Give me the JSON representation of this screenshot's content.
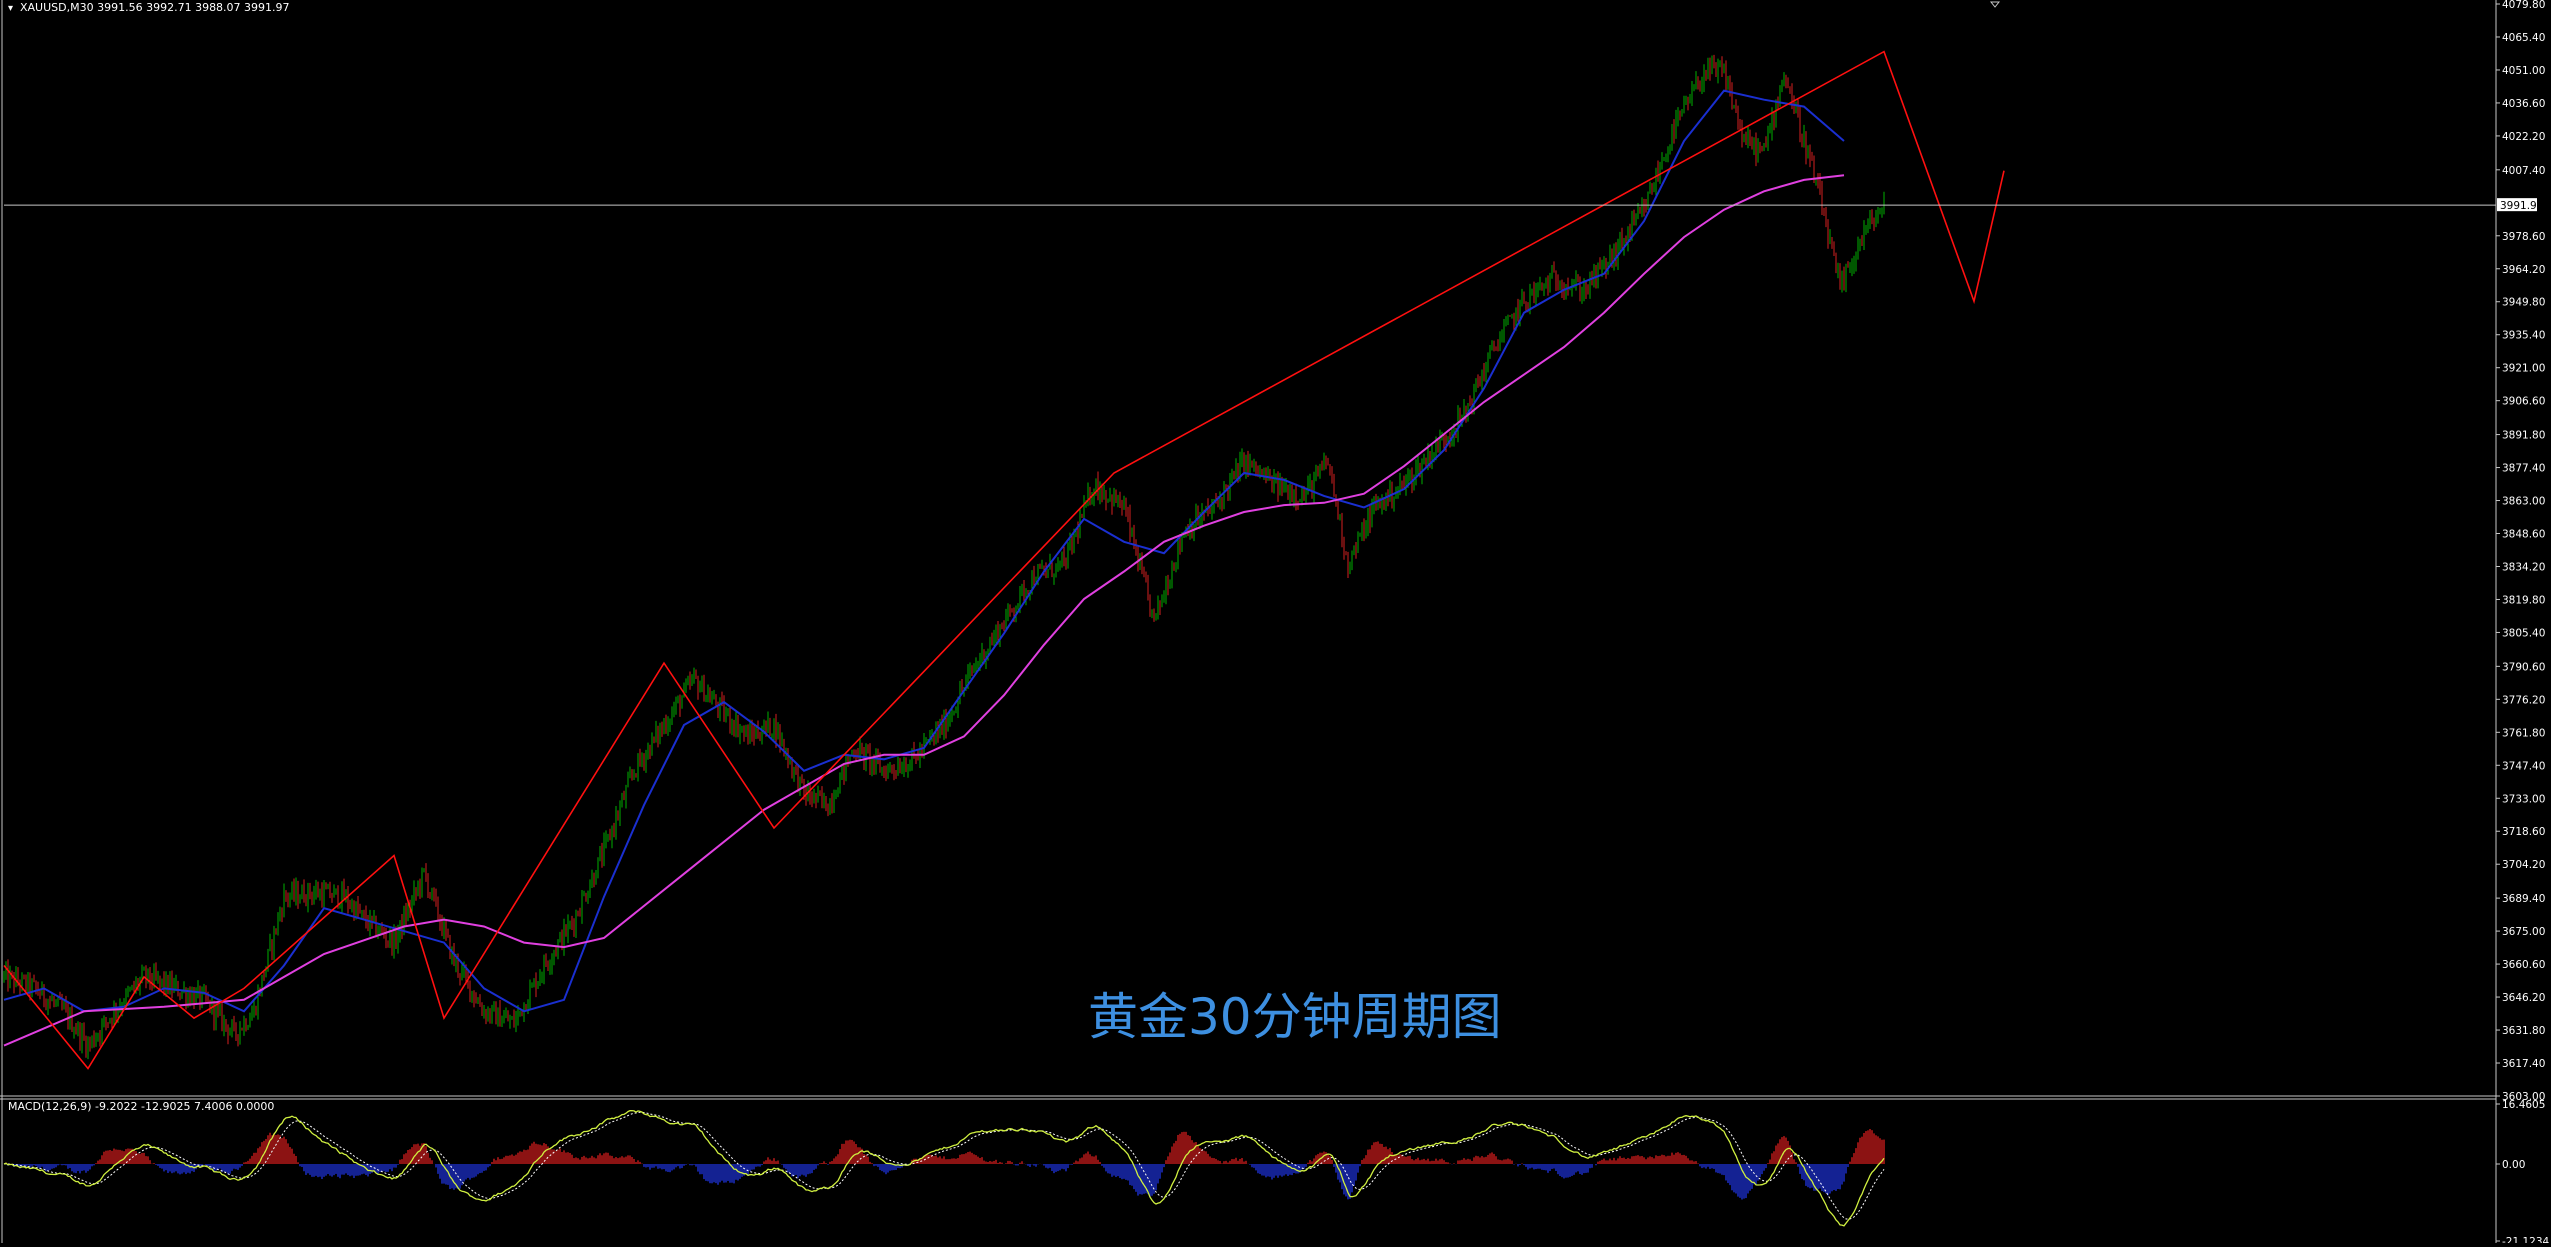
{
  "window": {
    "symbol_header": "XAUUSD,M30  3991.56 3992.71 3988.07 3991.97",
    "watermark_text": "黄金30分钟周期图",
    "current_price_label": "3991.97"
  },
  "colors": {
    "background": "#000000",
    "candle_up": "#00b000",
    "candle_down": "#d42020",
    "ma_fast": "#1a2fd0",
    "ma_slow": "#e040e0",
    "zigzag": "#ff1010",
    "grid_line": "#c8c8c8",
    "macd_hist_up": "#b01818",
    "macd_hist_down": "#1a2ab8",
    "macd_line": "#d0f040",
    "macd_signal": "#ffffff",
    "watermark": "#3d8fe0"
  },
  "chart_data": [
    {
      "type": "candlestick",
      "title": "XAUUSD,M30",
      "ylim": [
        3603.0,
        4079.8
      ],
      "yticks": [
        "4079.80",
        "4065.40",
        "4051.00",
        "4036.60",
        "4022.20",
        "4007.40",
        "3978.60",
        "3964.20",
        "3949.80",
        "3935.40",
        "3921.00",
        "3906.60",
        "3891.80",
        "3877.40",
        "3863.00",
        "3848.60",
        "3834.20",
        "3819.80",
        "3805.40",
        "3790.60",
        "3776.20",
        "3761.80",
        "3747.40",
        "3733.00",
        "3718.60",
        "3704.20",
        "3689.40",
        "3675.00",
        "3660.60",
        "3646.20",
        "3631.80",
        "3617.40",
        "3603.00"
      ],
      "current_price": 3991.97,
      "close_path": [
        [
          0,
          3655
        ],
        [
          15,
          3650
        ],
        [
          30,
          3640
        ],
        [
          42,
          3625
        ],
        [
          55,
          3640
        ],
        [
          70,
          3655
        ],
        [
          85,
          3650
        ],
        [
          100,
          3645
        ],
        [
          115,
          3630
        ],
        [
          125,
          3640
        ],
        [
          140,
          3690
        ],
        [
          155,
          3692
        ],
        [
          170,
          3690
        ],
        [
          180,
          3680
        ],
        [
          195,
          3670
        ],
        [
          210,
          3700
        ],
        [
          225,
          3662
        ],
        [
          240,
          3640
        ],
        [
          255,
          3635
        ],
        [
          270,
          3660
        ],
        [
          285,
          3680
        ],
        [
          300,
          3710
        ],
        [
          315,
          3745
        ],
        [
          330,
          3765
        ],
        [
          345,
          3785
        ],
        [
          360,
          3770
        ],
        [
          372,
          3760
        ],
        [
          385,
          3765
        ],
        [
          400,
          3735
        ],
        [
          412,
          3730
        ],
        [
          425,
          3755
        ],
        [
          440,
          3745
        ],
        [
          455,
          3750
        ],
        [
          470,
          3765
        ],
        [
          485,
          3790
        ],
        [
          500,
          3810
        ],
        [
          515,
          3830
        ],
        [
          530,
          3835
        ],
        [
          545,
          3870
        ],
        [
          560,
          3860
        ],
        [
          575,
          3810
        ],
        [
          590,
          3850
        ],
        [
          605,
          3860
        ],
        [
          620,
          3880
        ],
        [
          635,
          3870
        ],
        [
          650,
          3865
        ],
        [
          662,
          3880
        ],
        [
          672,
          3835
        ],
        [
          685,
          3860
        ],
        [
          700,
          3870
        ],
        [
          715,
          3885
        ],
        [
          730,
          3900
        ],
        [
          745,
          3930
        ],
        [
          760,
          3950
        ],
        [
          775,
          3960
        ],
        [
          790,
          3955
        ],
        [
          805,
          3970
        ],
        [
          820,
          3990
        ],
        [
          835,
          4025
        ],
        [
          850,
          4050
        ],
        [
          860,
          4050
        ],
        [
          870,
          4020
        ],
        [
          880,
          4015
        ],
        [
          890,
          4050
        ],
        [
          900,
          4020
        ],
        [
          908,
          3995
        ],
        [
          918,
          3955
        ],
        [
          930,
          3980
        ],
        [
          940,
          3992
        ]
      ],
      "series": [
        {
          "name": "",
          "kind": "moving_average_fast",
          "points": [
            [
              0,
              3645
            ],
            [
              20,
              3650
            ],
            [
              40,
              3640
            ],
            [
              60,
              3642
            ],
            [
              80,
              3650
            ],
            [
              100,
              3648
            ],
            [
              120,
              3640
            ],
            [
              140,
              3660
            ],
            [
              160,
              3685
            ],
            [
              180,
              3680
            ],
            [
              200,
              3675
            ],
            [
              220,
              3670
            ],
            [
              240,
              3650
            ],
            [
              260,
              3640
            ],
            [
              280,
              3645
            ],
            [
              300,
              3690
            ],
            [
              320,
              3730
            ],
            [
              340,
              3765
            ],
            [
              360,
              3775
            ],
            [
              380,
              3762
            ],
            [
              400,
              3745
            ],
            [
              420,
              3752
            ],
            [
              440,
              3750
            ],
            [
              460,
              3755
            ],
            [
              480,
              3780
            ],
            [
              500,
              3805
            ],
            [
              520,
              3832
            ],
            [
              540,
              3855
            ],
            [
              560,
              3845
            ],
            [
              580,
              3840
            ],
            [
              600,
              3858
            ],
            [
              620,
              3875
            ],
            [
              640,
              3872
            ],
            [
              660,
              3865
            ],
            [
              680,
              3860
            ],
            [
              700,
              3868
            ],
            [
              720,
              3885
            ],
            [
              740,
              3912
            ],
            [
              760,
              3945
            ],
            [
              780,
              3955
            ],
            [
              800,
              3962
            ],
            [
              820,
              3985
            ],
            [
              840,
              4020
            ],
            [
              860,
              4042
            ],
            [
              880,
              4038
            ],
            [
              900,
              4035
            ],
            [
              920,
              4020
            ]
          ]
        },
        {
          "name": "",
          "kind": "moving_average_slow",
          "points": [
            [
              0,
              3625
            ],
            [
              40,
              3640
            ],
            [
              80,
              3642
            ],
            [
              120,
              3645
            ],
            [
              160,
              3665
            ],
            [
              200,
              3677
            ],
            [
              220,
              3680
            ],
            [
              240,
              3677
            ],
            [
              260,
              3670
            ],
            [
              280,
              3668
            ],
            [
              300,
              3672
            ],
            [
              340,
              3700
            ],
            [
              380,
              3728
            ],
            [
              420,
              3748
            ],
            [
              440,
              3752
            ],
            [
              460,
              3752
            ],
            [
              480,
              3760
            ],
            [
              500,
              3778
            ],
            [
              520,
              3800
            ],
            [
              540,
              3820
            ],
            [
              560,
              3832
            ],
            [
              580,
              3845
            ],
            [
              600,
              3852
            ],
            [
              620,
              3858
            ],
            [
              640,
              3861
            ],
            [
              660,
              3862
            ],
            [
              680,
              3866
            ],
            [
              700,
              3878
            ],
            [
              720,
              3892
            ],
            [
              740,
              3906
            ],
            [
              760,
              3918
            ],
            [
              780,
              3930
            ],
            [
              800,
              3945
            ],
            [
              820,
              3962
            ],
            [
              840,
              3978
            ],
            [
              860,
              3990
            ],
            [
              880,
              3998
            ],
            [
              900,
              4003
            ],
            [
              920,
              4005
            ]
          ]
        },
        {
          "name": "",
          "kind": "zigzag",
          "points": [
            [
              0,
              3660
            ],
            [
              42,
              3615
            ],
            [
              70,
              3655
            ],
            [
              95,
              3637
            ],
            [
              120,
              3650
            ],
            [
              195,
              3708
            ],
            [
              220,
              3637
            ],
            [
              330,
              3792
            ],
            [
              385,
              3720
            ],
            [
              555,
              3875
            ],
            [
              940,
              4059
            ],
            [
              985,
              3950
            ],
            [
              1000,
              4007
            ]
          ]
        }
      ]
    },
    {
      "type": "macd",
      "title": "MACD(12,26,9) -9.2022 -12.9025 7.4006 0.0000",
      "ylim": [
        -21.1234,
        16.4605
      ],
      "yticks": [
        "16.4605",
        "0.00",
        "-21.1234"
      ],
      "values": {
        "macd": -9.2022,
        "signal": -12.9025,
        "histogram": 7.4006,
        "zero": 0.0
      }
    }
  ]
}
